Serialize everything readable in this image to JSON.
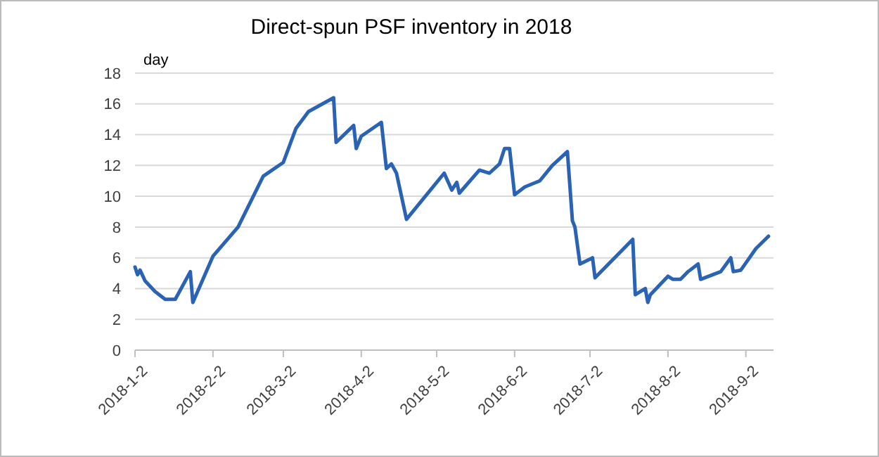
{
  "chart_data": {
    "type": "line",
    "title": "Direct-spun PSF inventory in 2018",
    "ylabel": "day",
    "series": [
      {
        "color": "#2a62b4",
        "x": [
          "2018-01-02",
          "2018-01-03",
          "2018-01-04",
          "2018-01-06",
          "2018-01-10",
          "2018-01-14",
          "2018-01-18",
          "2018-01-24",
          "2018-01-25",
          "2018-02-02",
          "2018-02-12",
          "2018-02-22",
          "2018-03-02",
          "2018-03-07",
          "2018-03-12",
          "2018-03-22",
          "2018-03-23",
          "2018-03-30",
          "2018-03-31",
          "2018-04-02",
          "2018-04-10",
          "2018-04-12",
          "2018-04-14",
          "2018-04-16",
          "2018-04-18",
          "2018-04-20",
          "2018-05-05",
          "2018-05-08",
          "2018-05-10",
          "2018-05-11",
          "2018-05-19",
          "2018-05-23",
          "2018-05-27",
          "2018-05-29",
          "2018-05-31",
          "2018-06-02",
          "2018-06-06",
          "2018-06-12",
          "2018-06-17",
          "2018-06-23",
          "2018-06-25",
          "2018-06-26",
          "2018-06-28",
          "2018-07-03",
          "2018-07-04",
          "2018-07-19",
          "2018-07-20",
          "2018-07-24",
          "2018-07-25",
          "2018-07-26",
          "2018-08-02",
          "2018-08-04",
          "2018-08-07",
          "2018-08-10",
          "2018-08-14",
          "2018-08-15",
          "2018-08-23",
          "2018-08-27",
          "2018-08-28",
          "2018-08-31",
          "2018-09-03",
          "2018-09-06",
          "2018-09-11"
        ],
        "values": [
          5.4,
          4.9,
          5.2,
          4.5,
          3.8,
          3.3,
          3.3,
          5.1,
          3.1,
          6.1,
          8.0,
          11.3,
          12.2,
          14.4,
          15.5,
          16.4,
          13.5,
          14.6,
          13.1,
          13.9,
          14.8,
          11.8,
          12.1,
          11.5,
          10.0,
          8.5,
          11.5,
          10.4,
          10.9,
          10.2,
          11.7,
          11.5,
          12.1,
          13.1,
          13.1,
          10.1,
          10.6,
          11.0,
          12.0,
          12.9,
          8.4,
          8.0,
          5.6,
          6.0,
          4.7,
          7.2,
          3.6,
          4.0,
          3.1,
          3.6,
          4.8,
          4.6,
          4.6,
          5.1,
          5.6,
          4.6,
          5.1,
          6.0,
          5.1,
          5.2,
          5.9,
          6.6,
          7.4
        ]
      }
    ],
    "xlim": [
      "2018-01-02",
      "2018-09-13"
    ],
    "xticks": [
      {
        "value": "2018-01-02",
        "label": "2018-1-2"
      },
      {
        "value": "2018-02-02",
        "label": "2018-2-2"
      },
      {
        "value": "2018-03-02",
        "label": "2018-3-2"
      },
      {
        "value": "2018-04-02",
        "label": "2018-4-2"
      },
      {
        "value": "2018-05-02",
        "label": "2018-5-2"
      },
      {
        "value": "2018-06-02",
        "label": "2018-6-2"
      },
      {
        "value": "2018-07-02",
        "label": "2018-7-2"
      },
      {
        "value": "2018-08-02",
        "label": "2018-8-2"
      },
      {
        "value": "2018-09-02",
        "label": "2018-9-2"
      }
    ],
    "ylim": [
      0,
      18
    ],
    "yticks": [
      0,
      2,
      4,
      6,
      8,
      10,
      12,
      14,
      16,
      18
    ],
    "grid": "y",
    "marker": "none",
    "line_style": "solid"
  }
}
